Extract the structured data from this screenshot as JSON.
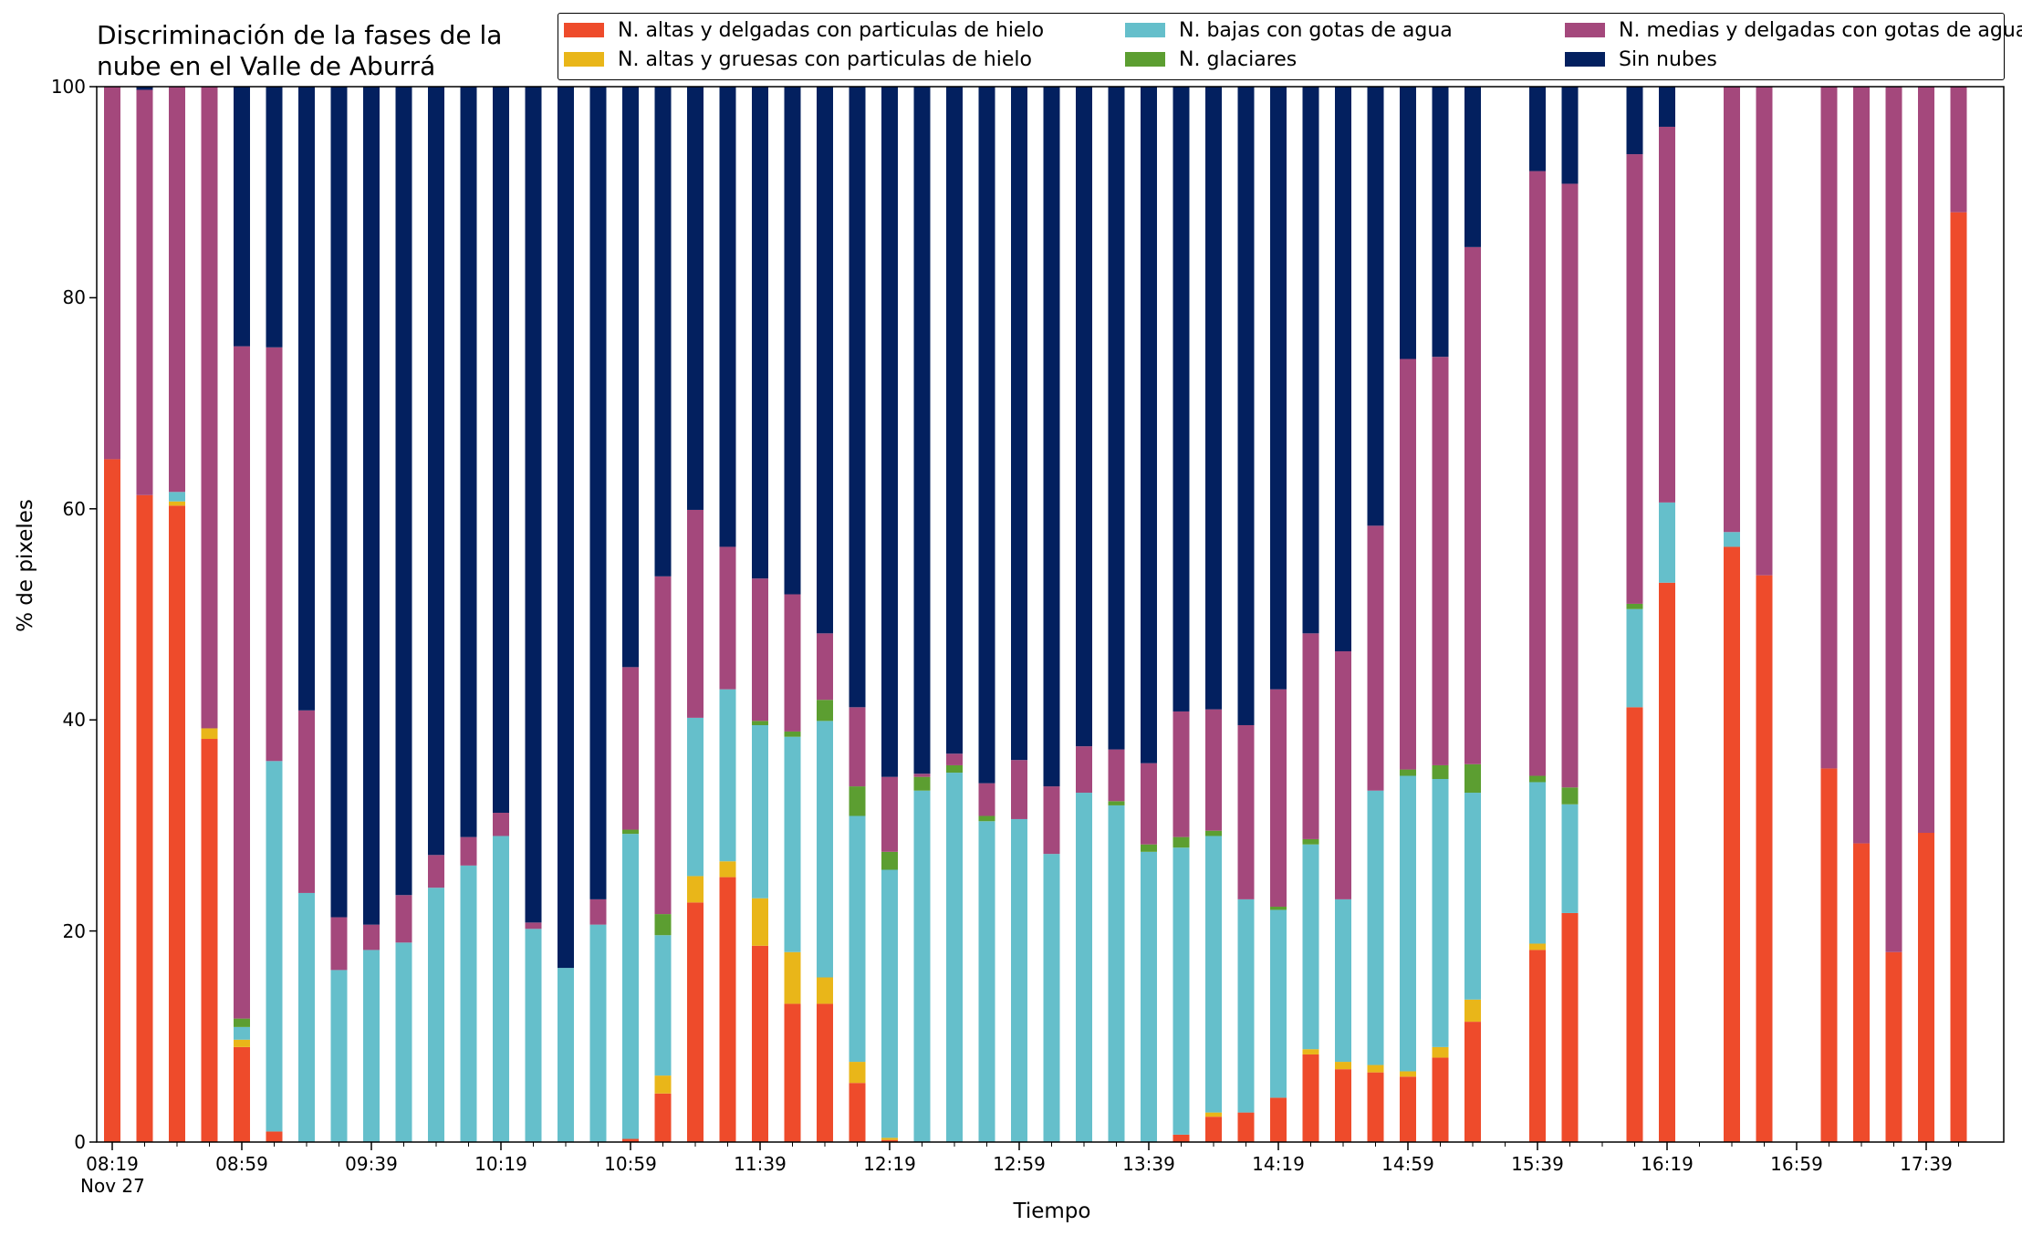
{
  "chart_data": {
    "type": "bar",
    "stacked": true,
    "title": "Discriminación de la fases de la\nnube en el Valle de Aburrá",
    "xlabel": "Tiempo",
    "ylabel": "% de pixeles",
    "ylim": [
      0,
      100
    ],
    "yticks": [
      0,
      20,
      40,
      60,
      80,
      100
    ],
    "grid": false,
    "legend_position": "top-right",
    "xticks": [
      "08:19",
      "08:59",
      "09:39",
      "10:19",
      "10:59",
      "11:39",
      "12:19",
      "12:59",
      "13:39",
      "14:19",
      "14:59",
      "15:39",
      "16:19",
      "16:59",
      "17:39"
    ],
    "xtick_sublabel": "Nov 27",
    "categories": [
      "08:19",
      "08:29",
      "08:39",
      "08:49",
      "08:59",
      "09:09",
      "09:19",
      "09:29",
      "09:39",
      "09:49",
      "09:59",
      "10:09",
      "10:19",
      "10:29",
      "10:39",
      "10:49",
      "10:59",
      "11:09",
      "11:19",
      "11:29",
      "11:39",
      "11:49",
      "11:59",
      "12:09",
      "12:19",
      "12:29",
      "12:39",
      "12:49",
      "12:59",
      "13:09",
      "13:19",
      "13:29",
      "13:39",
      "13:49",
      "13:59",
      "14:09",
      "14:19",
      "14:29",
      "14:39",
      "14:49",
      "14:59",
      "15:09",
      "15:19",
      "15:29",
      "15:39",
      "15:49",
      "15:59",
      "16:09",
      "16:19",
      "16:29",
      "16:39",
      "16:49",
      "16:59",
      "17:09",
      "17:19",
      "17:29",
      "17:39",
      "17:49"
    ],
    "series": [
      {
        "name": "N. altas y delgadas con particulas de hielo",
        "color": "#ee4b2b",
        "values": [
          64.7,
          61.3,
          60.3,
          38.2,
          9.0,
          1.0,
          0,
          0,
          0,
          0,
          0,
          0,
          0,
          0,
          0,
          0,
          0.3,
          4.6,
          22.7,
          25.1,
          18.6,
          13.1,
          13.1,
          5.6,
          0.2,
          0,
          0,
          0,
          0,
          0,
          0,
          0,
          0,
          0.7,
          2.4,
          2.8,
          4.2,
          8.3,
          6.9,
          6.6,
          6.2,
          8.0,
          11.4,
          null,
          18.2,
          21.7,
          null,
          41.2,
          53.0,
          null,
          56.4,
          53.7,
          null,
          35.4,
          28.3,
          18.0,
          29.3,
          88.1
        ]
      },
      {
        "name": "N. altas y gruesas con particulas de hielo",
        "color": "#e9b619",
        "values": [
          0,
          0,
          0.4,
          1.0,
          0.7,
          0,
          0,
          0,
          0,
          0,
          0,
          0,
          0,
          0,
          0,
          0,
          0,
          1.7,
          2.5,
          1.5,
          4.5,
          4.9,
          2.5,
          2.0,
          0.2,
          0,
          0,
          0,
          0,
          0,
          0,
          0,
          0,
          0,
          0.4,
          0,
          0,
          0.5,
          0.7,
          0.7,
          0.5,
          1.0,
          2.1,
          null,
          0.6,
          0,
          null,
          0,
          0,
          null,
          0,
          0,
          null,
          0,
          0,
          0,
          0,
          0
        ]
      },
      {
        "name": "N. bajas con gotas de agua",
        "color": "#65bfcb",
        "values": [
          0,
          0,
          0.9,
          0,
          1.2,
          35.1,
          23.6,
          16.3,
          18.2,
          18.9,
          24.1,
          26.2,
          29.0,
          20.2,
          16.5,
          20.6,
          28.9,
          13.3,
          15.0,
          16.3,
          16.4,
          20.4,
          24.3,
          23.3,
          25.4,
          33.3,
          35.0,
          30.4,
          30.6,
          27.3,
          33.1,
          31.9,
          27.5,
          27.2,
          26.2,
          20.2,
          17.8,
          19.4,
          15.4,
          26.0,
          28.0,
          25.4,
          19.6,
          null,
          15.3,
          10.3,
          null,
          9.3,
          7.6,
          null,
          1.4,
          0,
          null,
          0,
          0,
          0,
          0,
          0
        ]
      },
      {
        "name": "N. glaciares",
        "color": "#5c9e31",
        "values": [
          0,
          0,
          0,
          0,
          0.8,
          0,
          0,
          0,
          0,
          0,
          0,
          0,
          0,
          0,
          0,
          0,
          0.4,
          2.0,
          0,
          0,
          0.4,
          0.5,
          2.0,
          2.8,
          1.7,
          1.3,
          0.7,
          0.5,
          0,
          0,
          0,
          0.4,
          0.7,
          1.0,
          0.5,
          0,
          0.3,
          0.5,
          0,
          0,
          0.6,
          1.3,
          2.7,
          null,
          0.6,
          1.6,
          null,
          0.5,
          0,
          null,
          0,
          0,
          null,
          0,
          0,
          0,
          0,
          0
        ]
      },
      {
        "name": "N. medias y delgadas con gotas de agua",
        "color": "#a4487c",
        "values": [
          35.3,
          38.4,
          38.4,
          60.8,
          63.7,
          39.2,
          17.3,
          5.0,
          2.4,
          4.5,
          3.1,
          2.7,
          2.2,
          0.6,
          0,
          2.4,
          15.4,
          32.0,
          19.7,
          13.5,
          13.5,
          13.0,
          6.3,
          7.5,
          7.1,
          0.3,
          1.1,
          3.1,
          5.6,
          6.4,
          4.4,
          4.9,
          7.7,
          11.9,
          11.5,
          16.5,
          20.6,
          19.5,
          23.5,
          25.1,
          38.9,
          38.7,
          49.0,
          null,
          57.3,
          57.2,
          null,
          42.6,
          35.6,
          null,
          42.2,
          46.3,
          null,
          64.6,
          71.7,
          82.0,
          70.7,
          11.9
        ]
      },
      {
        "name": "Sin nubes",
        "color": "#03205f",
        "values": [
          0,
          0.3,
          0,
          0,
          24.6,
          24.7,
          59.1,
          78.7,
          79.4,
          76.6,
          72.8,
          71.1,
          68.8,
          79.2,
          83.5,
          77.0,
          55.0,
          46.4,
          40.1,
          43.6,
          46.6,
          48.1,
          51.8,
          58.8,
          65.4,
          65.1,
          63.2,
          66.0,
          63.8,
          66.3,
          62.5,
          62.8,
          64.1,
          59.2,
          59.0,
          60.5,
          57.1,
          51.8,
          53.5,
          41.6,
          25.8,
          25.6,
          15.2,
          null,
          8.0,
          9.2,
          null,
          6.4,
          3.8,
          null,
          0,
          0,
          null,
          0,
          0,
          0,
          0,
          0
        ]
      }
    ]
  }
}
